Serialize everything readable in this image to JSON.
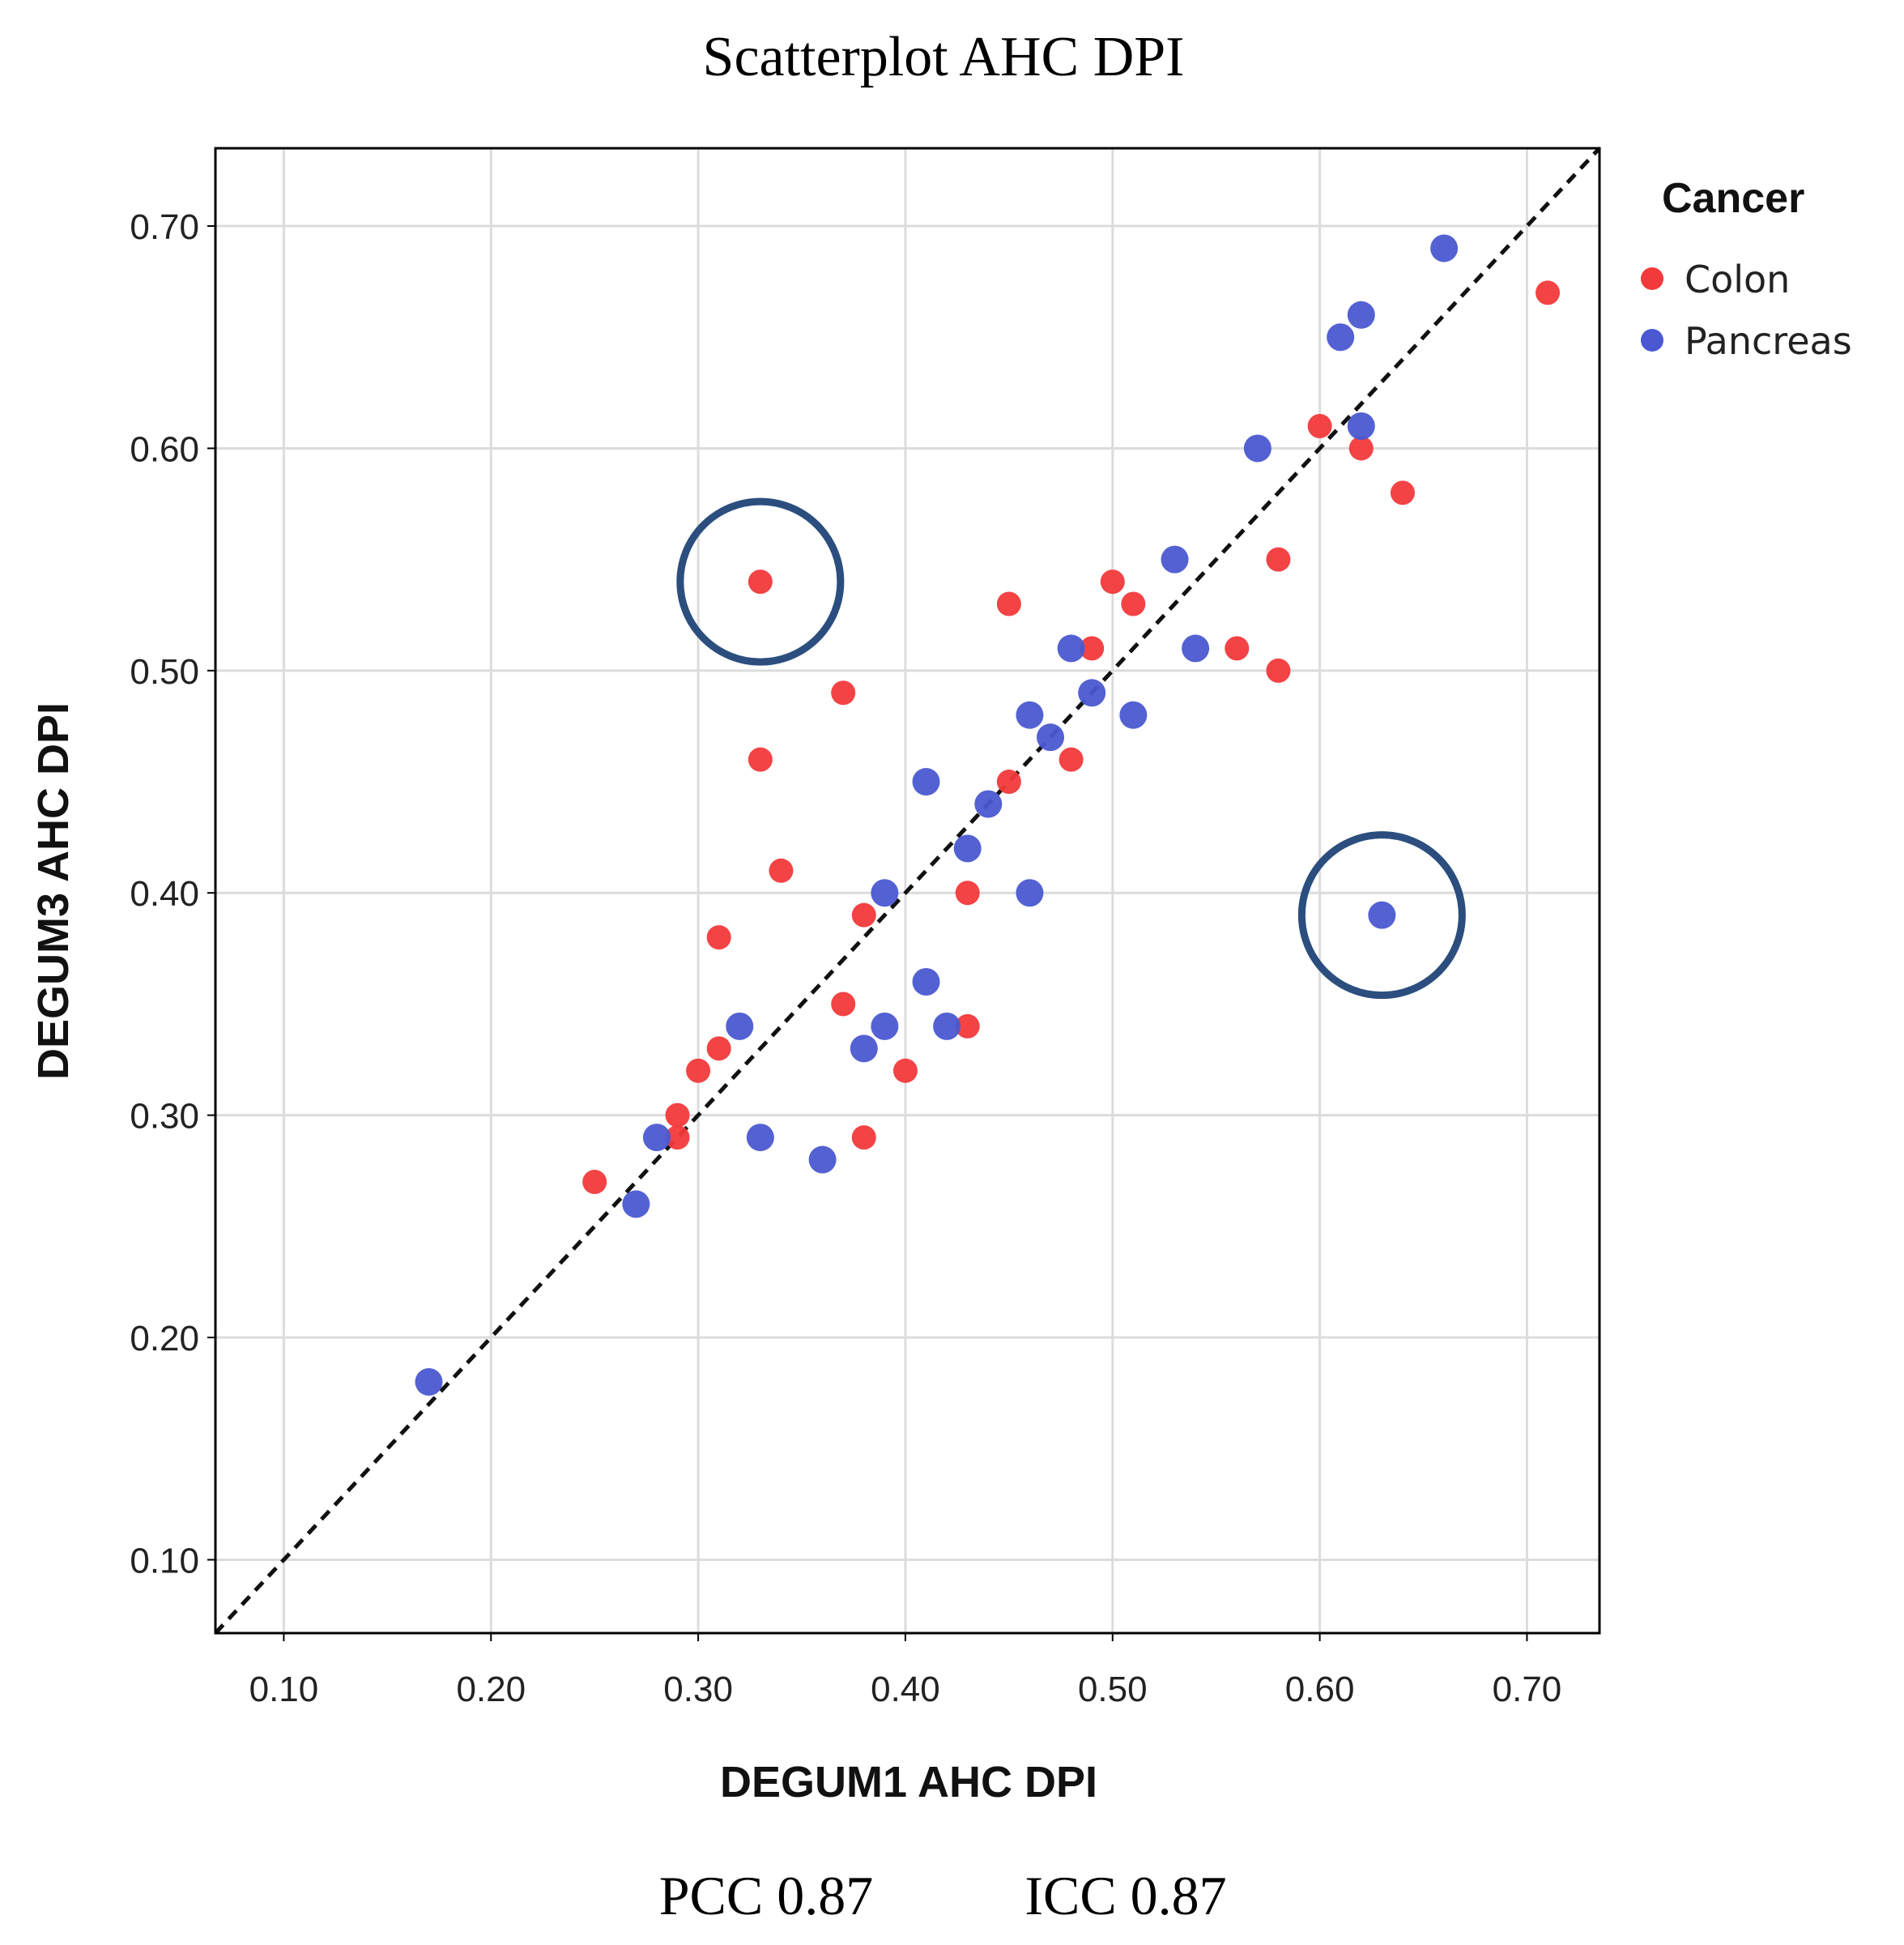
{
  "chart_data": {
    "type": "scatter",
    "title": "Scatterplot AHC DPI",
    "xlabel": "DEGUM1 AHC DPI",
    "ylabel": "DEGUM3 AHC DPI",
    "xlim": [
      0.067,
      0.735
    ],
    "ylim": [
      0.067,
      0.735
    ],
    "x_ticks": [
      "0.10",
      "0.20",
      "0.30",
      "0.40",
      "0.50",
      "0.60",
      "0.70"
    ],
    "y_ticks": [
      "0.10",
      "0.20",
      "0.30",
      "0.40",
      "0.50",
      "0.60",
      "0.70"
    ],
    "grid": true,
    "reference_line": "identity (y = x), dashed",
    "legend": {
      "title": "Cancer",
      "placement": "outside right, top",
      "entries": [
        {
          "label": "Colon",
          "color": "#f2393b"
        },
        {
          "label": "Pancreas",
          "color": "#4a58d1"
        }
      ]
    },
    "series": [
      {
        "name": "Colon",
        "color": "#f2393b",
        "points": [
          {
            "x": 0.71,
            "y": 0.67
          },
          {
            "x": 0.6,
            "y": 0.61
          },
          {
            "x": 0.62,
            "y": 0.6
          },
          {
            "x": 0.64,
            "y": 0.58
          },
          {
            "x": 0.58,
            "y": 0.55
          },
          {
            "x": 0.33,
            "y": 0.54
          },
          {
            "x": 0.5,
            "y": 0.54
          },
          {
            "x": 0.45,
            "y": 0.53
          },
          {
            "x": 0.51,
            "y": 0.53
          },
          {
            "x": 0.49,
            "y": 0.51
          },
          {
            "x": 0.56,
            "y": 0.51
          },
          {
            "x": 0.58,
            "y": 0.5
          },
          {
            "x": 0.37,
            "y": 0.49
          },
          {
            "x": 0.33,
            "y": 0.46
          },
          {
            "x": 0.48,
            "y": 0.46
          },
          {
            "x": 0.45,
            "y": 0.45
          },
          {
            "x": 0.34,
            "y": 0.41
          },
          {
            "x": 0.43,
            "y": 0.4
          },
          {
            "x": 0.38,
            "y": 0.39
          },
          {
            "x": 0.31,
            "y": 0.38
          },
          {
            "x": 0.37,
            "y": 0.35
          },
          {
            "x": 0.43,
            "y": 0.34
          },
          {
            "x": 0.31,
            "y": 0.33
          },
          {
            "x": 0.3,
            "y": 0.32
          },
          {
            "x": 0.4,
            "y": 0.32
          },
          {
            "x": 0.29,
            "y": 0.3
          },
          {
            "x": 0.29,
            "y": 0.29
          },
          {
            "x": 0.38,
            "y": 0.29
          },
          {
            "x": 0.25,
            "y": 0.27
          }
        ]
      },
      {
        "name": "Pancreas",
        "color": "#4a58d1",
        "points": [
          {
            "x": 0.66,
            "y": 0.69
          },
          {
            "x": 0.62,
            "y": 0.66
          },
          {
            "x": 0.61,
            "y": 0.65
          },
          {
            "x": 0.62,
            "y": 0.61
          },
          {
            "x": 0.57,
            "y": 0.6
          },
          {
            "x": 0.53,
            "y": 0.55
          },
          {
            "x": 0.48,
            "y": 0.51
          },
          {
            "x": 0.54,
            "y": 0.51
          },
          {
            "x": 0.49,
            "y": 0.49
          },
          {
            "x": 0.46,
            "y": 0.48
          },
          {
            "x": 0.51,
            "y": 0.48
          },
          {
            "x": 0.47,
            "y": 0.47
          },
          {
            "x": 0.41,
            "y": 0.45
          },
          {
            "x": 0.44,
            "y": 0.44
          },
          {
            "x": 0.43,
            "y": 0.42
          },
          {
            "x": 0.39,
            "y": 0.4
          },
          {
            "x": 0.46,
            "y": 0.4
          },
          {
            "x": 0.63,
            "y": 0.39
          },
          {
            "x": 0.41,
            "y": 0.36
          },
          {
            "x": 0.32,
            "y": 0.34
          },
          {
            "x": 0.39,
            "y": 0.34
          },
          {
            "x": 0.42,
            "y": 0.34
          },
          {
            "x": 0.38,
            "y": 0.33
          },
          {
            "x": 0.28,
            "y": 0.29
          },
          {
            "x": 0.33,
            "y": 0.29
          },
          {
            "x": 0.36,
            "y": 0.28
          },
          {
            "x": 0.27,
            "y": 0.26
          },
          {
            "x": 0.17,
            "y": 0.18
          }
        ]
      }
    ],
    "highlights": [
      {
        "series": "Colon",
        "x": 0.33,
        "y": 0.54,
        "shape": "circle outline",
        "color": "#2b4e7e"
      },
      {
        "series": "Pancreas",
        "x": 0.63,
        "y": 0.39,
        "shape": "circle outline",
        "color": "#2b4e7e"
      }
    ]
  },
  "footer": {
    "pcc": "PCC 0.87",
    "icc": "ICC 0.87"
  }
}
